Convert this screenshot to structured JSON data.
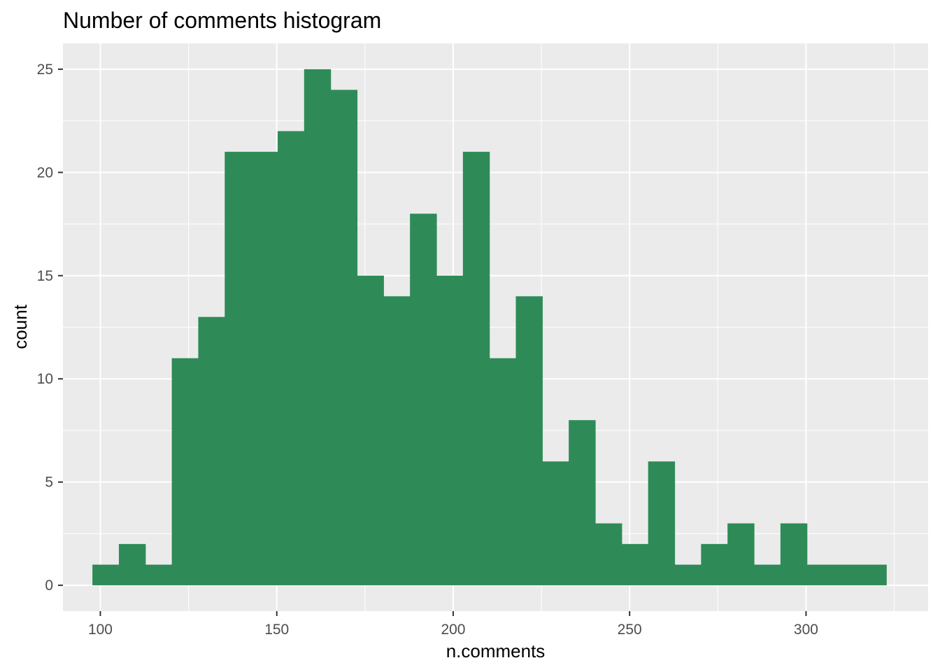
{
  "chart_data": {
    "type": "bar",
    "title": "Number of comments histogram",
    "xlabel": "n.comments",
    "ylabel": "count",
    "xlim": [
      89.4,
      334.6
    ],
    "ylim": [
      -1.25,
      26.25
    ],
    "x_ticks": [
      100,
      150,
      200,
      250,
      300
    ],
    "x_tick_labels": [
      "100",
      "150",
      "200",
      "250",
      "300"
    ],
    "y_ticks": [
      0,
      5,
      10,
      15,
      20,
      25
    ],
    "y_tick_labels": [
      "0",
      "5",
      "10",
      "15",
      "20",
      "25"
    ],
    "bin_width": 7.5,
    "bin_centers": [
      101.5,
      109,
      116.5,
      124,
      131.5,
      139,
      146.5,
      154,
      161.5,
      169,
      176.5,
      184,
      191.5,
      199,
      206.5,
      214,
      221.5,
      229,
      236.5,
      244,
      251.5,
      259,
      266.5,
      274,
      281.5,
      289,
      296.5,
      304,
      311.5,
      319
    ],
    "values": [
      1,
      2,
      1,
      11,
      13,
      21,
      21,
      22,
      25,
      24,
      15,
      14,
      18,
      15,
      21,
      11,
      14,
      6,
      8,
      3,
      2,
      6,
      1,
      2,
      3,
      1,
      3,
      1,
      1,
      1
    ],
    "bar_color": "#2e8b57",
    "panel_background": "#ebebeb",
    "grid": true,
    "grid_color": "#ffffff",
    "legend": "none"
  }
}
